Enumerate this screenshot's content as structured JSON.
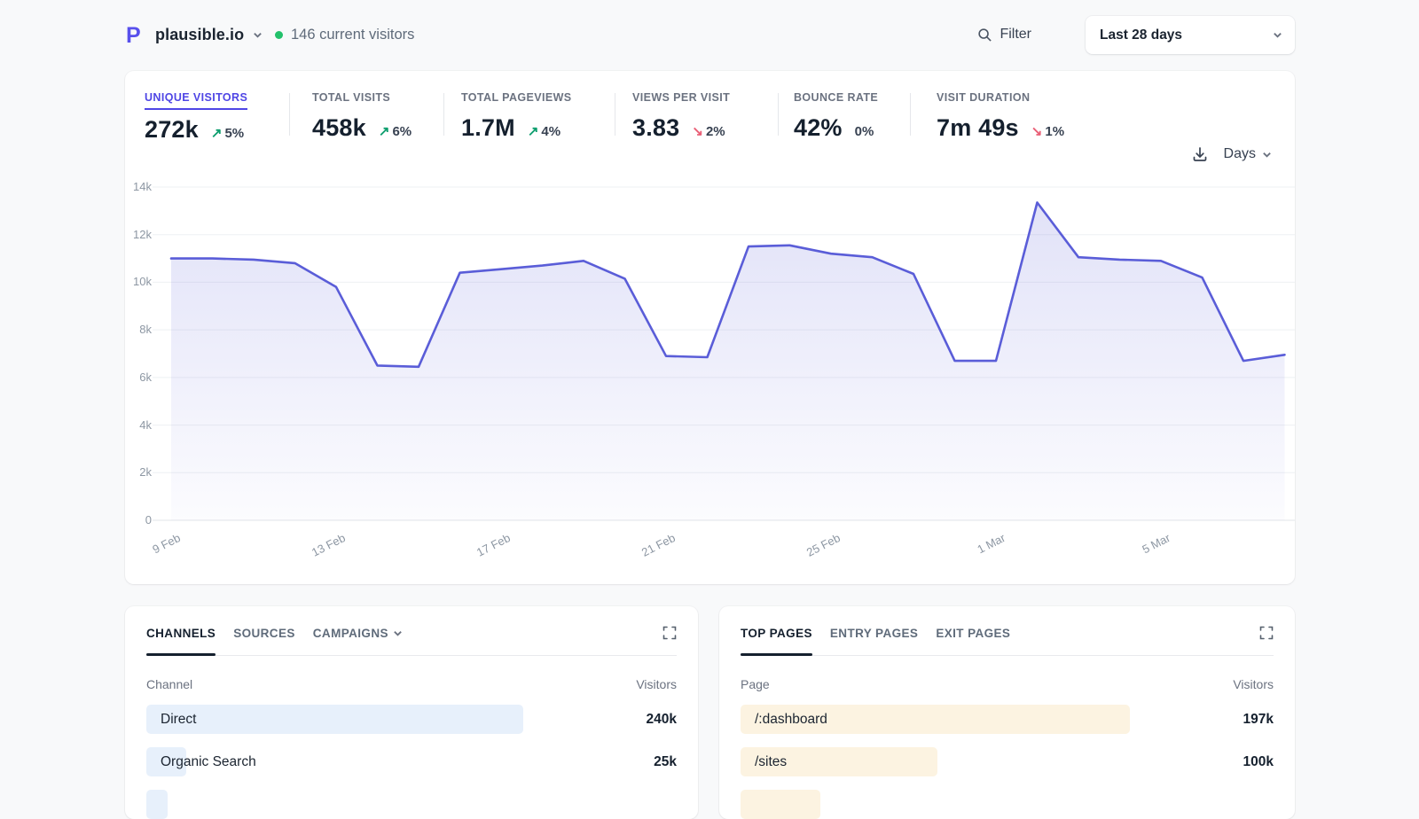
{
  "header": {
    "site_name": "plausible.io",
    "current_visitors": "146 current visitors",
    "filter_label": "Filter",
    "date_range": "Last 28 days"
  },
  "stats": {
    "items": [
      {
        "label": "UNIQUE VISITORS",
        "value": "272k",
        "change": "5%",
        "direction": "up",
        "active": true
      },
      {
        "label": "TOTAL VISITS",
        "value": "458k",
        "change": "6%",
        "direction": "up",
        "active": false
      },
      {
        "label": "TOTAL PAGEVIEWS",
        "value": "1.7M",
        "change": "4%",
        "direction": "up",
        "active": false
      },
      {
        "label": "VIEWS PER VISIT",
        "value": "3.83",
        "change": "2%",
        "direction": "down",
        "active": false
      },
      {
        "label": "BOUNCE RATE",
        "value": "42%",
        "change": "0%",
        "direction": "none",
        "active": false
      },
      {
        "label": "VISIT DURATION",
        "value": "7m 49s",
        "change": "1%",
        "direction": "down",
        "active": false
      }
    ]
  },
  "chart_controls": {
    "interval": "Days"
  },
  "chart_data": {
    "type": "area",
    "title": "",
    "series": [
      {
        "name": "Unique Visitors",
        "values": [
          11000,
          11000,
          10950,
          10800,
          9800,
          6500,
          6450,
          10400,
          10550,
          10700,
          10900,
          10150,
          6900,
          6850,
          11500,
          11550,
          11200,
          11050,
          10350,
          6700,
          6700,
          13350,
          11050,
          10950,
          10900,
          10200,
          6700,
          6950
        ]
      }
    ],
    "x": [
      "9 Feb",
      "10 Feb",
      "11 Feb",
      "12 Feb",
      "13 Feb",
      "14 Feb",
      "15 Feb",
      "16 Feb",
      "17 Feb",
      "18 Feb",
      "19 Feb",
      "20 Feb",
      "21 Feb",
      "22 Feb",
      "23 Feb",
      "24 Feb",
      "25 Feb",
      "26 Feb",
      "27 Feb",
      "28 Feb",
      "1 Mar",
      "2 Mar",
      "3 Mar",
      "4 Mar",
      "5 Mar",
      "6 Mar",
      "7 Mar",
      "8 Mar"
    ],
    "xtick_indices": [
      0,
      4,
      8,
      12,
      16,
      20,
      24
    ],
    "ylim": [
      0,
      14000
    ],
    "yticks": [
      0,
      2000,
      4000,
      6000,
      8000,
      10000,
      12000,
      14000
    ],
    "grid": true,
    "legend": false
  },
  "panels": {
    "left": {
      "tabs": [
        {
          "label": "CHANNELS",
          "active": true
        },
        {
          "label": "SOURCES",
          "active": false
        },
        {
          "label": "CAMPAIGNS",
          "active": false,
          "chevron": true
        }
      ],
      "columns": {
        "dimension": "Channel",
        "metric": "Visitors"
      },
      "rows": [
        {
          "label": "Direct",
          "value": "240k",
          "bar_pct": 71
        },
        {
          "label": "Organic Search",
          "value": "25k",
          "bar_pct": 7.5
        },
        {
          "label": "",
          "value": "",
          "bar_pct": 4
        }
      ]
    },
    "right": {
      "tabs": [
        {
          "label": "TOP PAGES",
          "active": true
        },
        {
          "label": "ENTRY PAGES",
          "active": false
        },
        {
          "label": "EXIT PAGES",
          "active": false
        }
      ],
      "columns": {
        "dimension": "Page",
        "metric": "Visitors"
      },
      "rows": [
        {
          "label": "/:dashboard",
          "value": "197k",
          "bar_pct": 73
        },
        {
          "label": "/sites",
          "value": "100k",
          "bar_pct": 37
        },
        {
          "label": "",
          "value": "",
          "bar_pct": 15
        }
      ]
    }
  },
  "colors": {
    "accent": "#4f46e5",
    "chart_line": "#5a5dd8",
    "chart_fill": "#5a5dd8",
    "positive": "#0d9e6e",
    "negative": "#e95f76",
    "live_dot": "#23c16b",
    "bar_blue": "#e7f0fb",
    "bar_orange": "#fcf3e1"
  }
}
